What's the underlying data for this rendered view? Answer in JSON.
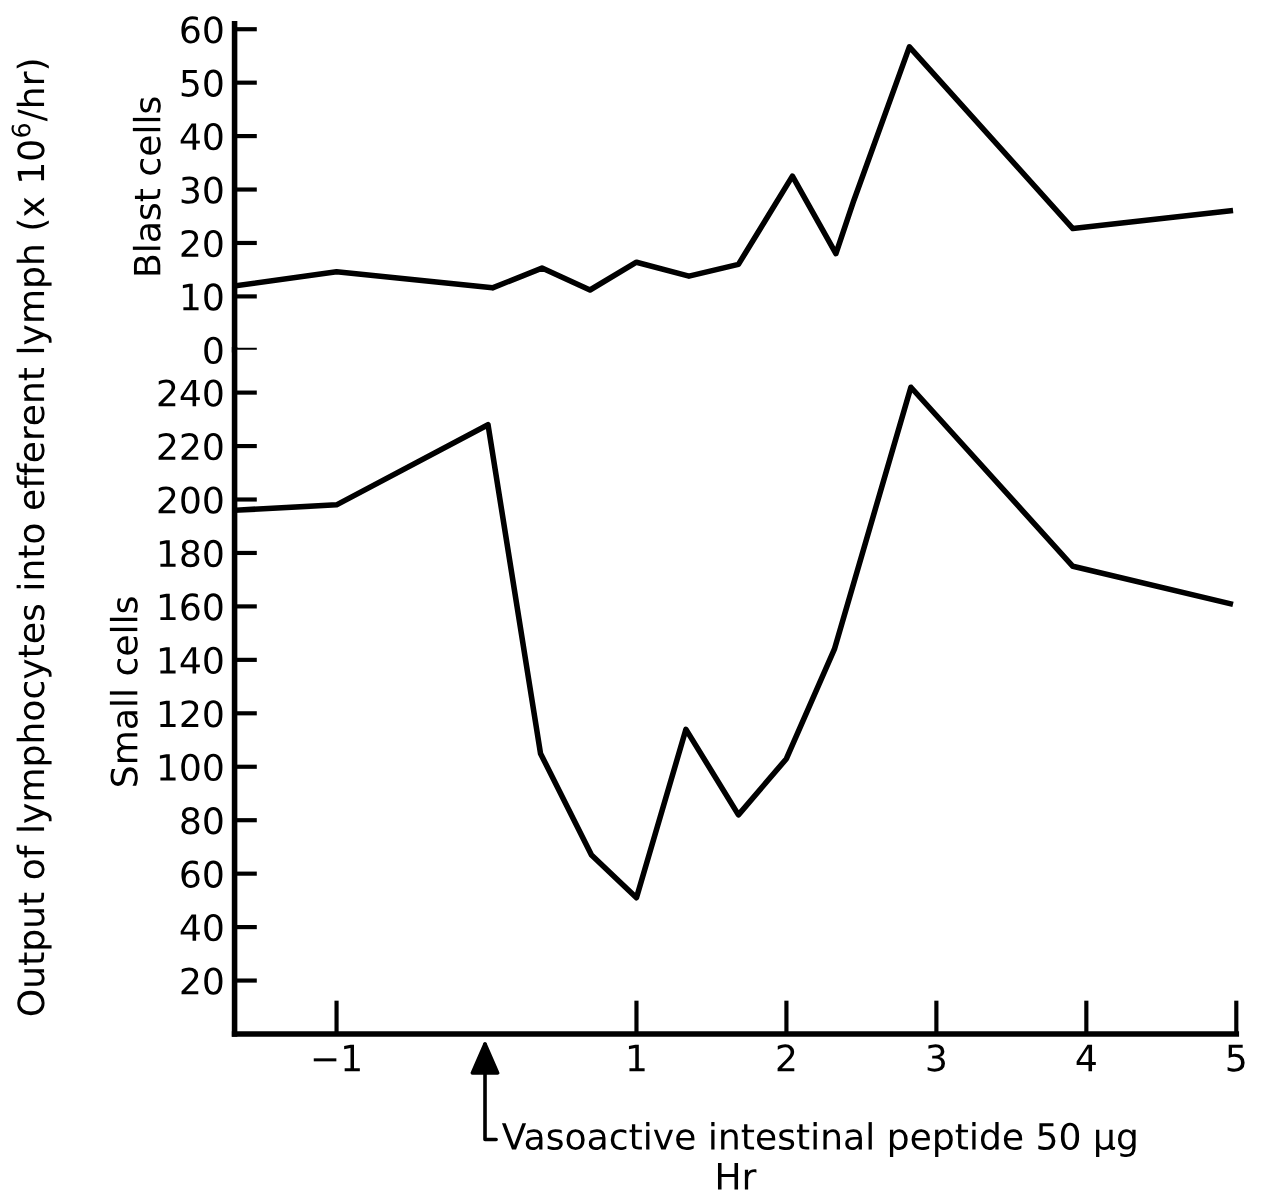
{
  "chart_data": [
    {
      "type": "line",
      "ylabel": "Blast cells",
      "annotations": [
        "Output of lymphocytes into efferent lymph (x 10$^{6}$/hr)"
      ],
      "x": [
        -1.67,
        -1.0,
        0.04,
        0.37,
        0.69,
        1.0,
        1.35,
        1.68,
        2.04,
        2.33,
        2.45,
        2.82,
        3.91,
        4.96
      ],
      "series": [
        {
          "color": "#000000",
          "values": [
            12,
            14.6,
            11.6,
            15.3,
            11.2,
            16.4,
            13.8,
            16,
            32.5,
            18,
            28,
            56.7,
            22.7,
            26
          ]
        }
      ],
      "xlim": [
        -1.68,
        5.0
      ],
      "xticks": [
        -1,
        1,
        2,
        3,
        4,
        5
      ],
      "ylim": [
        0,
        61
      ],
      "yticks": [
        0,
        10,
        20,
        30,
        40,
        50,
        60
      ],
      "tick_labels": "y",
      "grid": false,
      "legend": false
    },
    {
      "type": "line",
      "ylabel": "Small cells",
      "xlabel": "Hr",
      "annotations": [
        "Vasoactive intestinal peptide 50 μg"
      ],
      "x": [
        -1.67,
        -1.0,
        0.01,
        0.36,
        0.7,
        1.0,
        1.33,
        1.68,
        2.0,
        2.32,
        2.83,
        3.91,
        4.96
      ],
      "series": [
        {
          "color": "#000000",
          "values": [
            196,
            198,
            228,
            105,
            67,
            51,
            114,
            82,
            103,
            144,
            242,
            175,
            161
          ]
        }
      ],
      "xlim": [
        -1.68,
        5.0
      ],
      "xticks": [
        {
          "value": -1,
          "label": "−1"
        },
        1,
        2,
        3,
        4,
        5
      ],
      "ylim": [
        0,
        256
      ],
      "yticks": [
        20,
        40,
        60,
        80,
        100,
        120,
        140,
        160,
        180,
        200,
        220,
        240
      ],
      "grid": false,
      "legend": false
    }
  ]
}
